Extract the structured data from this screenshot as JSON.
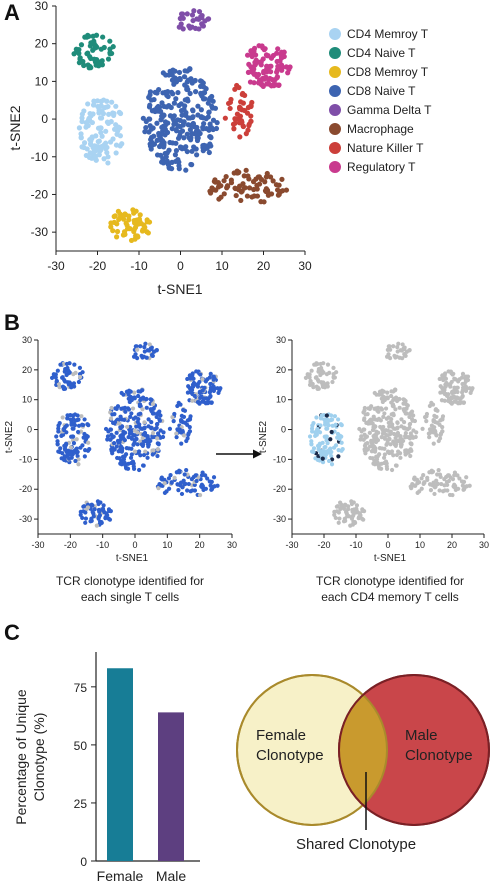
{
  "panels": {
    "a": "A",
    "b": "B",
    "c": "C"
  },
  "colors": {
    "cd4_memory": "#a9d3f2",
    "cd4_naive": "#1f8c7a",
    "cd8_memory": "#e6b91e",
    "cd8_naive": "#3d64b1",
    "gamma_delta": "#7f4ea8",
    "macrophage": "#8a4a2f",
    "nk": "#cc3f3a",
    "treg": "#c93a8e",
    "clonotype_blue": "#2f5fcc",
    "grey": "#bdbdbd",
    "highlight_light": "#9fd0ee",
    "highlight_dark": "#1a2a4a",
    "bar_female": "#177d96",
    "bar_male": "#5d3f80",
    "venn_female": "#f7f1c8",
    "venn_male": "#c9464a",
    "venn_overlap": "#c99a2e"
  },
  "chart_data": [
    {
      "type": "scatter",
      "panel": "A",
      "xlabel": "t-SNE1",
      "ylabel": "t-SNE2",
      "xlim": [
        -30,
        30
      ],
      "ylim": [
        -35,
        30
      ],
      "xticks": [
        -30,
        -20,
        -10,
        0,
        10,
        20,
        30
      ],
      "yticks": [
        30,
        20,
        10,
        0,
        -10,
        -20,
        -30
      ],
      "legend": {
        "placement": "right",
        "entries": [
          "CD4 Memroy T",
          "CD4 Naive T",
          "CD8 Memroy T",
          "CD8 Naive T",
          "Gamma Delta T",
          "Macrophage",
          "Nature Killer T",
          "Regulatory T"
        ]
      },
      "clusters": [
        {
          "name": "CD4 Memroy T",
          "color": "cd4_memory",
          "center": [
            -19,
            -3
          ],
          "spread": [
            5.5,
            9
          ],
          "n": 110
        },
        {
          "name": "CD4 Naive T",
          "color": "cd4_naive",
          "center": [
            -21,
            18
          ],
          "spread": [
            5,
            4.5
          ],
          "n": 55
        },
        {
          "name": "CD8 Memroy T",
          "color": "cd8_memory",
          "center": [
            -12,
            -28
          ],
          "spread": [
            5,
            4.5
          ],
          "n": 55
        },
        {
          "name": "CD8 Naive T",
          "color": "cd8_naive",
          "center": [
            0,
            0
          ],
          "spread": [
            9,
            14
          ],
          "n": 280
        },
        {
          "name": "Gamma Delta T",
          "color": "gamma_delta",
          "center": [
            3,
            26
          ],
          "spread": [
            4,
            3
          ],
          "n": 30
        },
        {
          "name": "Macrophage",
          "color": "macrophage",
          "center": [
            16,
            -18
          ],
          "spread": [
            10,
            4.5
          ],
          "n": 80
        },
        {
          "name": "Nature Killer T",
          "color": "nk",
          "center": [
            14,
            2
          ],
          "spread": [
            3.5,
            7
          ],
          "n": 45
        },
        {
          "name": "Regulatory T",
          "color": "treg",
          "center": [
            21,
            14
          ],
          "spread": [
            6,
            6
          ],
          "n": 100
        }
      ]
    },
    {
      "type": "scatter",
      "panel": "B-left",
      "xlabel": "t-SNE1",
      "ylabel": "t-SNE2",
      "xlim": [
        -30,
        30
      ],
      "ylim": [
        -35,
        30
      ],
      "xticks": [
        -30,
        -20,
        -10,
        0,
        10,
        20,
        30
      ],
      "yticks": [
        30,
        20,
        10,
        0,
        -10,
        -20,
        -30
      ],
      "caption_line1": "TCR clonotype identified for",
      "caption_line2": "each single T cells"
    },
    {
      "type": "scatter",
      "panel": "B-right",
      "xlabel": "t-SNE1",
      "ylabel": "t-SNE2",
      "xlim": [
        -30,
        30
      ],
      "ylim": [
        -35,
        30
      ],
      "xticks": [
        -30,
        -20,
        -10,
        0,
        10,
        20,
        30
      ],
      "yticks": [
        30,
        20,
        10,
        0,
        -10,
        -20,
        -30
      ],
      "caption_line1": "TCR clonotype identified for",
      "caption_line2": "each CD4 memory T cells"
    },
    {
      "type": "bar",
      "panel": "C",
      "categories": [
        "Female",
        "Male"
      ],
      "values": [
        83,
        64
      ],
      "ylabel": "Percentage of Unique Clonotype (%)",
      "ylabel_line1": "Percentage of Unique",
      "ylabel_line2": "Clonotype (%)",
      "ylim": [
        0,
        90
      ],
      "yticks": [
        0,
        25,
        50,
        75
      ]
    }
  ],
  "venn": {
    "female_line1": "Female",
    "female_line2": "Clonotype",
    "male_line1": "Male",
    "male_line2": "Clonotype",
    "shared": "Shared Clonotype"
  }
}
